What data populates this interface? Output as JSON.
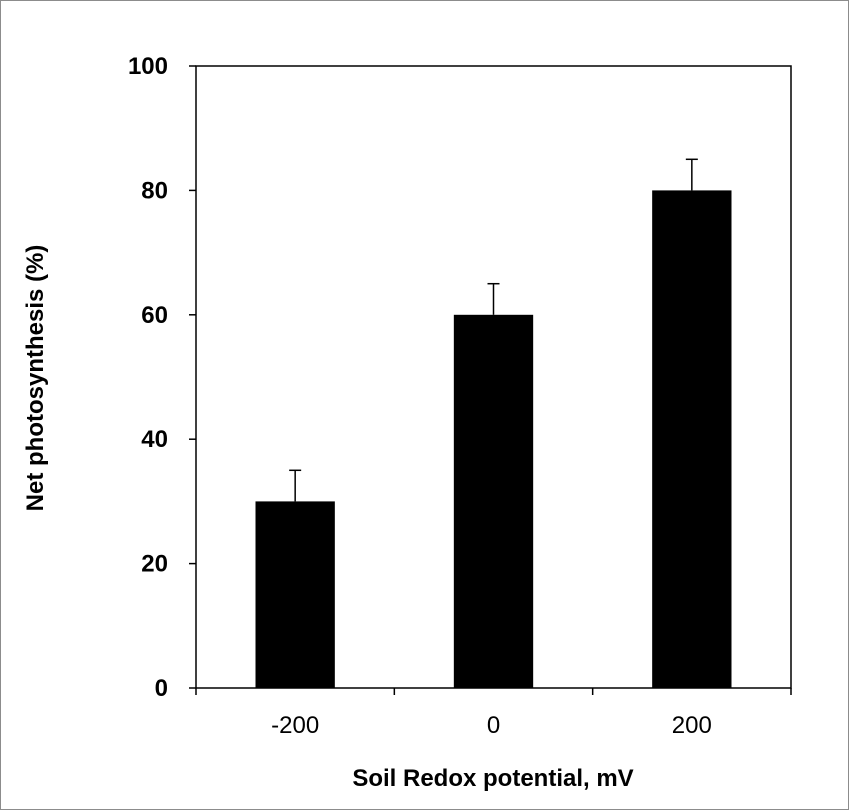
{
  "chart_data": {
    "type": "bar",
    "title": "",
    "xlabel": "Soil Redox potential, mV",
    "ylabel": "Net photosynthesis (%)",
    "categories": [
      "-200",
      "0",
      "200"
    ],
    "values": [
      30,
      60,
      80
    ],
    "error_bars": [
      5,
      5,
      5
    ],
    "ylim": [
      0,
      100
    ],
    "yticks": [
      "0",
      "20",
      "40",
      "60",
      "80",
      "100"
    ],
    "grid": false,
    "legend": "none",
    "bar_color": "#000000"
  }
}
